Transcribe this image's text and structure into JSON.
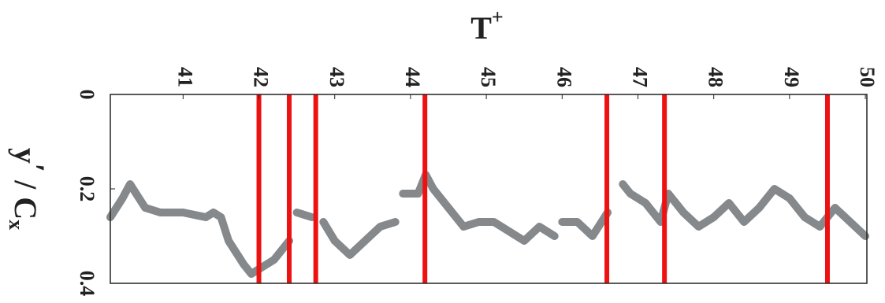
{
  "chart_data": {
    "type": "line",
    "xlabel": {
      "base": "T",
      "sup": "+"
    },
    "ylabel": {
      "base": "y",
      "prime": "′",
      "mid": " / C",
      "sub": "x"
    },
    "x": [
      40.04,
      40.2,
      40.3,
      40.5,
      40.7,
      41.0,
      41.3,
      41.4,
      41.5,
      41.6,
      41.8,
      41.9,
      42.0,
      42.2,
      42.4,
      42.45,
      42.5,
      42.7,
      42.78,
      42.85,
      43.0,
      43.2,
      43.4,
      43.6,
      43.8,
      43.85,
      43.9,
      44.1,
      44.2,
      44.3,
      44.5,
      44.7,
      44.9,
      45.1,
      45.3,
      45.5,
      45.7,
      45.9,
      45.95,
      46.0,
      46.2,
      46.4,
      46.6,
      46.7,
      46.8,
      46.9,
      47.1,
      47.3,
      47.4,
      47.6,
      47.8,
      48.0,
      48.2,
      48.4,
      48.6,
      48.8,
      49.0,
      49.2,
      49.4,
      49.6,
      49.8,
      50.0
    ],
    "series": [
      {
        "color": "#86898c",
        "values": [
          0.26,
          0.22,
          0.19,
          0.24,
          0.25,
          0.25,
          0.26,
          0.25,
          0.26,
          0.31,
          0.36,
          0.38,
          0.37,
          0.35,
          0.31,
          null,
          0.25,
          0.26,
          null,
          0.27,
          0.31,
          0.34,
          0.31,
          0.28,
          0.27,
          null,
          0.21,
          0.21,
          0.17,
          0.2,
          0.24,
          0.28,
          0.27,
          0.27,
          0.29,
          0.31,
          0.28,
          0.3,
          null,
          0.27,
          0.27,
          0.3,
          0.25,
          null,
          0.19,
          0.21,
          0.23,
          0.27,
          0.21,
          0.25,
          0.28,
          0.26,
          0.23,
          0.27,
          0.24,
          0.2,
          0.22,
          0.26,
          0.28,
          0.24,
          0.27,
          0.3
        ]
      }
    ],
    "vlines": [
      42.0,
      42.4,
      42.75,
      44.19,
      46.59,
      47.35,
      49.5
    ],
    "vline_color": "#ee1111",
    "xlim": [
      40.04,
      50.02
    ],
    "xticks": [
      41,
      42,
      43,
      44,
      45,
      46,
      47,
      48,
      49,
      50
    ],
    "ylim": [
      0,
      0.4
    ],
    "yticks": [
      0,
      0.2,
      0.4
    ],
    "y_inverted": true,
    "xaxis_position": "top"
  }
}
